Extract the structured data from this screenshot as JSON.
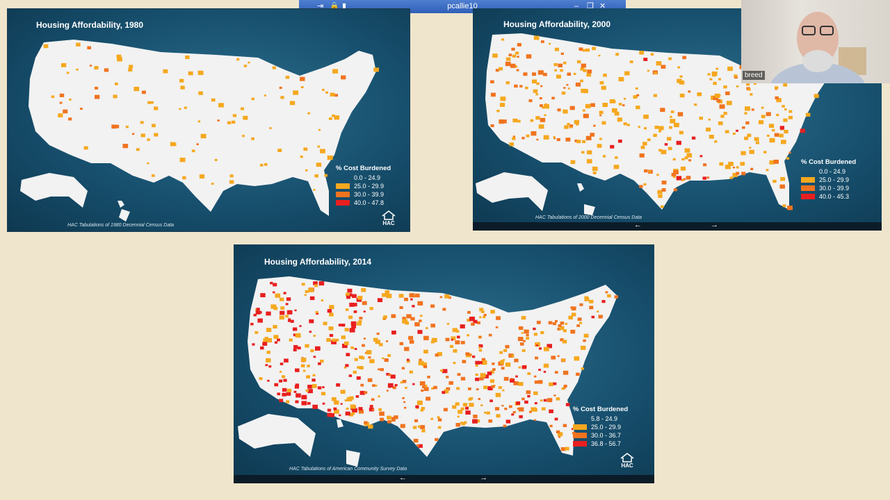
{
  "window": {
    "title": "pcallie10"
  },
  "webcam": {
    "name": "breed"
  },
  "colors": {
    "c0": "#f2f2f2",
    "c1": "#f5a81f",
    "c2": "#f0731f",
    "c3": "#e81f1f"
  },
  "maps": [
    {
      "title": "Housing Affordability, 1980",
      "source": "HAC Tabulations of 1980 Decennial Census Data",
      "legend_title": "% Cost Burdened",
      "legend": [
        "0.0 - 24.9",
        "25.0 - 29.9",
        "30.0 - 39.9",
        "40.0 - 47.8"
      ],
      "logo": "HAC"
    },
    {
      "title": "Housing Affordability, 2000",
      "source": "HAC Tabulations of 2000 Decennial Census Data",
      "legend_title": "% Cost Burdened",
      "legend": [
        "0.0 - 24.9",
        "25.0 - 29.9",
        "30.0 - 39.9",
        "40.0 - 45.3"
      ],
      "nav": [
        "←",
        "→"
      ]
    },
    {
      "title": "Housing Affordability, 2014",
      "source": "HAC Tabulations of American Community Survey Data",
      "legend_title": "% Cost Burdened",
      "legend": [
        "5.8 - 24.9",
        "25.0 - 29.9",
        "30.0 - 36.7",
        "36.8 - 56.7"
      ],
      "logo": "HAC",
      "nav": [
        "←",
        "→"
      ]
    }
  ]
}
